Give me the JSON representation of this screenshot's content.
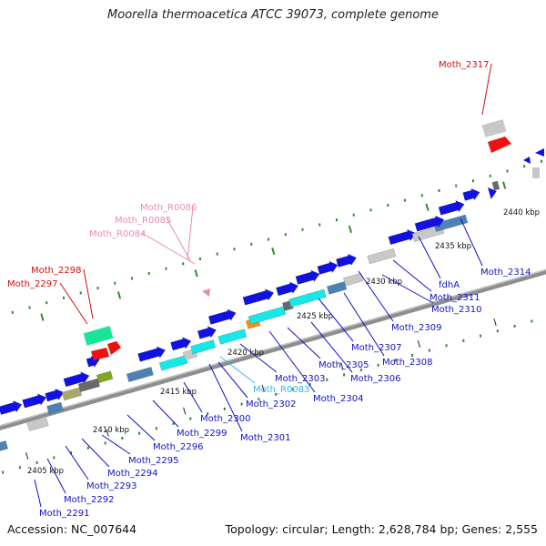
{
  "title": "Moorella thermoacetica ATCC 39073, complete genome",
  "accession_text": "Accession: NC_007644",
  "summary_text": "Topology: circular; Length: 2,628,784 bp; Genes: 2,555",
  "colors": {
    "backbone": "#8e8e8e",
    "dots": "#2e8b2e",
    "label_blue": "#1010c8",
    "label_red": "#d01010",
    "label_pink": "#e98bb0",
    "label_cyan": "#33b8e0",
    "gene_blue": "#1212e0",
    "gene_cyan": "#19e6e6",
    "gene_gray": "#c8c8c8",
    "gene_steel": "#4e82b4",
    "gene_orange": "#ff8c00",
    "gene_red": "#ee1111",
    "gene_green": "#19e59a",
    "gene_olive": "#a8a86a",
    "gene_darkgray": "#696969",
    "gene_yellowgreen": "#7ea826"
  },
  "diagram": {
    "axis_labels": [
      "2405 kbp",
      "2410 kbp",
      "2415 kbp",
      "2420 kbp",
      "2425 kbp",
      "2430 kbp",
      "2435 kbp",
      "2440 kbp"
    ],
    "gene_labels": [
      {
        "text": "Moth_2291",
        "color": "blue"
      },
      {
        "text": "Moth_2292",
        "color": "blue"
      },
      {
        "text": "Moth_2293",
        "color": "blue"
      },
      {
        "text": "Moth_2294",
        "color": "blue"
      },
      {
        "text": "Moth_2295",
        "color": "blue"
      },
      {
        "text": "Moth_2296",
        "color": "blue"
      },
      {
        "text": "Moth_2299",
        "color": "blue"
      },
      {
        "text": "Moth_2300",
        "color": "blue"
      },
      {
        "text": "Moth_2301",
        "color": "blue"
      },
      {
        "text": "Moth_2302",
        "color": "blue"
      },
      {
        "text": "Moth_R0083",
        "color": "cyan"
      },
      {
        "text": "Moth_2303",
        "color": "blue"
      },
      {
        "text": "Moth_2304",
        "color": "blue"
      },
      {
        "text": "Moth_2305",
        "color": "blue"
      },
      {
        "text": "Moth_2306",
        "color": "blue"
      },
      {
        "text": "Moth_2307",
        "color": "blue"
      },
      {
        "text": "Moth_2308",
        "color": "blue"
      },
      {
        "text": "Moth_2309",
        "color": "blue"
      },
      {
        "text": "Moth_2310",
        "color": "blue"
      },
      {
        "text": "Moth_2311",
        "color": "blue"
      },
      {
        "text": "fdhA",
        "color": "blue"
      },
      {
        "text": "Moth_2314",
        "color": "blue"
      },
      {
        "text": "Moth_2297",
        "color": "red"
      },
      {
        "text": "Moth_2298",
        "color": "red"
      },
      {
        "text": "Moth_2317",
        "color": "red"
      },
      {
        "text": "Moth_R0084",
        "color": "pink"
      },
      {
        "text": "Moth_R0085",
        "color": "pink"
      },
      {
        "text": "Moth_R0086",
        "color": "pink"
      }
    ]
  }
}
